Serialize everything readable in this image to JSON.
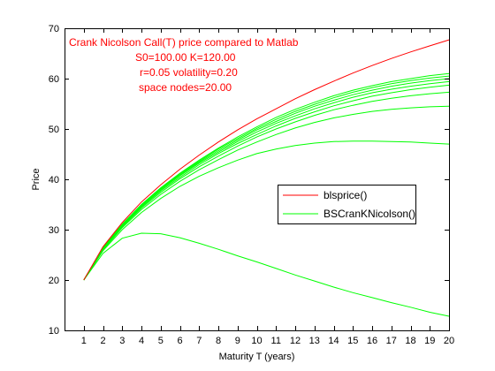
{
  "chart_data": {
    "type": "line",
    "title": "",
    "xlabel": "Maturity T (years)",
    "ylabel": "Price",
    "xlim": [
      0,
      20
    ],
    "ylim": [
      10,
      70
    ],
    "x": [
      1,
      2,
      3,
      4,
      5,
      6,
      7,
      8,
      9,
      10,
      11,
      12,
      13,
      14,
      15,
      16,
      17,
      18,
      19,
      20
    ],
    "xticks": [
      "1",
      "2",
      "3",
      "4",
      "5",
      "6",
      "7",
      "8",
      "9",
      "10",
      "11",
      "12",
      "13",
      "14",
      "15",
      "16",
      "17",
      "18",
      "19",
      "20"
    ],
    "yticks": [
      "10",
      "20",
      "30",
      "40",
      "50",
      "60",
      "70"
    ],
    "grid": false,
    "legend_position": "center-right",
    "annotations": [
      "Crank Nicolson Call(T) price compared to Matlab",
      "S0=100.00 K=120.00",
      "r=0.05 volatility=0.20",
      "space nodes=20.00"
    ],
    "annotation_color": "#ff0000",
    "legend": [
      {
        "label": "blsprice()",
        "color": "#ff0000"
      },
      {
        "label": "BSCranKNicolson()",
        "color": "#00ff00"
      }
    ],
    "series": [
      {
        "name": "blsprice()",
        "color": "#ff0000",
        "values": [
          20.0,
          26.6,
          31.4,
          35.5,
          38.9,
          42.0,
          44.8,
          47.4,
          49.8,
          52.0,
          54.0,
          56.0,
          57.8,
          59.5,
          61.1,
          62.6,
          64.0,
          65.3,
          66.5,
          67.7
        ]
      },
      {
        "name": "",
        "color": "#00ff00",
        "values": [
          20.0,
          26.4,
          31.1,
          35.0,
          38.3,
          41.2,
          43.8,
          46.2,
          48.4,
          50.4,
          52.3,
          53.9,
          55.3,
          56.6,
          57.7,
          58.6,
          59.4,
          60.0,
          60.6,
          61.0
        ]
      },
      {
        "name": "",
        "color": "#00ff00",
        "values": [
          20.0,
          26.3,
          31.0,
          34.9,
          38.2,
          41.1,
          43.6,
          46.0,
          48.1,
          50.1,
          51.9,
          53.5,
          54.9,
          56.2,
          57.3,
          58.2,
          59.0,
          59.6,
          60.1,
          60.5
        ]
      },
      {
        "name": "",
        "color": "#00ff00",
        "values": [
          20.0,
          26.3,
          30.9,
          34.8,
          38.1,
          40.9,
          43.4,
          45.7,
          47.8,
          49.8,
          51.5,
          53.1,
          54.5,
          55.7,
          56.8,
          57.7,
          58.5,
          59.1,
          59.6,
          60.0
        ]
      },
      {
        "name": "",
        "color": "#00ff00",
        "values": [
          20.0,
          26.2,
          30.8,
          34.6,
          37.9,
          40.7,
          43.2,
          45.4,
          47.5,
          49.4,
          51.1,
          52.6,
          54.0,
          55.2,
          56.3,
          57.2,
          57.9,
          58.5,
          59.0,
          59.4
        ]
      },
      {
        "name": "",
        "color": "#00ff00",
        "values": [
          20.0,
          26.2,
          30.7,
          34.5,
          37.7,
          40.4,
          42.9,
          45.1,
          47.1,
          48.9,
          50.6,
          52.1,
          53.4,
          54.6,
          55.6,
          56.5,
          57.2,
          57.8,
          58.3,
          58.7
        ]
      },
      {
        "name": "",
        "color": "#00ff00",
        "values": [
          20.0,
          26.1,
          30.6,
          34.3,
          37.4,
          40.1,
          42.5,
          44.6,
          46.6,
          48.4,
          50.0,
          51.4,
          52.7,
          53.8,
          54.7,
          55.5,
          56.1,
          56.6,
          57.0,
          57.3
        ]
      },
      {
        "name": "",
        "color": "#00ff00",
        "values": [
          20.0,
          26.0,
          30.4,
          34.0,
          37.0,
          39.6,
          41.9,
          43.9,
          45.8,
          47.4,
          48.9,
          50.2,
          51.3,
          52.2,
          52.9,
          53.5,
          53.9,
          54.2,
          54.4,
          54.5
        ]
      },
      {
        "name": "",
        "color": "#00ff00",
        "values": [
          20.0,
          25.8,
          30.0,
          33.4,
          36.2,
          38.6,
          40.6,
          42.3,
          43.8,
          45.1,
          46.0,
          46.7,
          47.2,
          47.5,
          47.6,
          47.6,
          47.5,
          47.4,
          47.2,
          47.0
        ]
      },
      {
        "name": "",
        "color": "#00ff00",
        "values": [
          20.0,
          25.3,
          28.3,
          29.3,
          29.2,
          28.4,
          27.3,
          26.1,
          24.8,
          23.6,
          22.3,
          21.0,
          19.8,
          18.6,
          17.5,
          16.5,
          15.5,
          14.6,
          13.6,
          12.8
        ]
      }
    ]
  }
}
